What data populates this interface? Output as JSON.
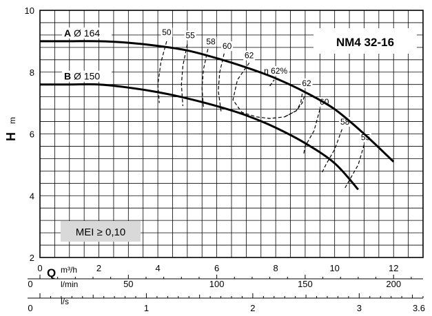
{
  "chart_data": {
    "type": "line",
    "title": "NM4 32-16",
    "ylabel": "H",
    "ylabel_unit": "m",
    "xlabel": "Q",
    "x_unit_m3h": "m³/h",
    "x_unit_lmin": "l/min",
    "x_unit_ls": "l/s",
    "xlim": [
      0,
      13
    ],
    "ylim": [
      2,
      10
    ],
    "y_ticks": [
      2,
      4,
      6,
      8,
      10
    ],
    "x_ticks_m3h": [
      0,
      2,
      4,
      6,
      8,
      10,
      12
    ],
    "x_ticks_lmin": [
      0,
      50,
      100,
      150,
      200
    ],
    "x_ticks_ls": [
      0,
      1,
      2,
      3,
      3.6
    ],
    "series": [
      {
        "name": "A Ø 164",
        "label_bold": "A",
        "label_rest": "Ø 164",
        "points": [
          [
            0,
            9.0
          ],
          [
            1,
            9.0
          ],
          [
            2,
            9.0
          ],
          [
            3,
            8.95
          ],
          [
            4,
            8.85
          ],
          [
            5,
            8.7
          ],
          [
            6,
            8.45
          ],
          [
            7,
            8.15
          ],
          [
            8,
            7.8
          ],
          [
            9,
            7.35
          ],
          [
            10,
            6.8
          ],
          [
            11,
            6.0
          ],
          [
            12,
            5.1
          ]
        ]
      },
      {
        "name": "B Ø 150",
        "label_bold": "B",
        "label_rest": "Ø 150",
        "points": [
          [
            0,
            7.6
          ],
          [
            1,
            7.6
          ],
          [
            2,
            7.6
          ],
          [
            3,
            7.5
          ],
          [
            4,
            7.35
          ],
          [
            5,
            7.15
          ],
          [
            6,
            6.9
          ],
          [
            7,
            6.6
          ],
          [
            8,
            6.2
          ],
          [
            9,
            5.7
          ],
          [
            10,
            5.05
          ],
          [
            10.8,
            4.2
          ]
        ]
      }
    ],
    "efficiency_contours": [
      {
        "label": "50",
        "label_at": [
          4.3,
          9.2
        ],
        "points": [
          [
            4.3,
            9.0
          ],
          [
            4.1,
            8.3
          ],
          [
            4.0,
            7.6
          ],
          [
            4.05,
            7.0
          ]
        ]
      },
      {
        "label": "55",
        "label_at": [
          5.1,
          9.1
        ],
        "points": [
          [
            5.0,
            8.9
          ],
          [
            4.85,
            8.2
          ],
          [
            4.8,
            7.6
          ],
          [
            4.85,
            6.9
          ]
        ]
      },
      {
        "label": "58",
        "label_at": [
          5.8,
          8.9
        ],
        "points": [
          [
            5.7,
            8.75
          ],
          [
            5.55,
            8.1
          ],
          [
            5.5,
            7.5
          ],
          [
            5.55,
            6.8
          ]
        ]
      },
      {
        "label": "60",
        "label_at": [
          6.35,
          8.75
        ],
        "points": [
          [
            6.25,
            8.6
          ],
          [
            6.1,
            8.0
          ],
          [
            6.05,
            7.4
          ],
          [
            6.15,
            6.7
          ]
        ]
      },
      {
        "label": "62",
        "label_at": [
          7.1,
          8.45
        ],
        "points": [
          [
            7.1,
            8.3
          ],
          [
            6.7,
            7.75
          ],
          [
            6.55,
            7.1
          ],
          [
            6.85,
            6.7
          ],
          [
            7.35,
            6.55
          ],
          [
            7.8,
            6.5
          ],
          [
            8.3,
            6.55
          ],
          [
            8.7,
            6.75
          ],
          [
            8.9,
            7.0
          ],
          [
            9.0,
            7.3
          ]
        ]
      },
      {
        "label": "η 62%",
        "label_at": [
          8.0,
          7.95
        ],
        "points": [
          [
            7.8,
            7.55
          ],
          [
            7.95,
            7.75
          ]
        ]
      },
      {
        "label": "62",
        "label_at": [
          9.05,
          7.55
        ],
        "points": [
          [
            8.9,
            7.3
          ],
          [
            8.85,
            7.0
          ],
          [
            8.7,
            6.75
          ],
          [
            8.3,
            6.55
          ]
        ]
      },
      {
        "label": "60",
        "label_at": [
          9.65,
          6.95
        ],
        "points": [
          [
            9.5,
            6.8
          ],
          [
            9.3,
            6.1
          ],
          [
            9.0,
            5.6
          ],
          [
            8.95,
            5.35
          ]
        ]
      },
      {
        "label": "58",
        "label_at": [
          10.35,
          6.3
        ],
        "points": [
          [
            10.25,
            6.15
          ],
          [
            10.0,
            5.5
          ],
          [
            9.7,
            5.0
          ],
          [
            9.55,
            4.7
          ]
        ]
      },
      {
        "label": "55",
        "label_at": [
          11.05,
          5.8
        ],
        "points": [
          [
            11.0,
            5.65
          ],
          [
            10.8,
            5.0
          ],
          [
            10.5,
            4.5
          ],
          [
            10.35,
            4.25
          ]
        ]
      }
    ],
    "annotation": "MEI ≥ 0,10",
    "grid": true
  },
  "colors": {
    "line": "#000000",
    "annotation_bg": "#d9d9d9",
    "background": "#ffffff"
  }
}
